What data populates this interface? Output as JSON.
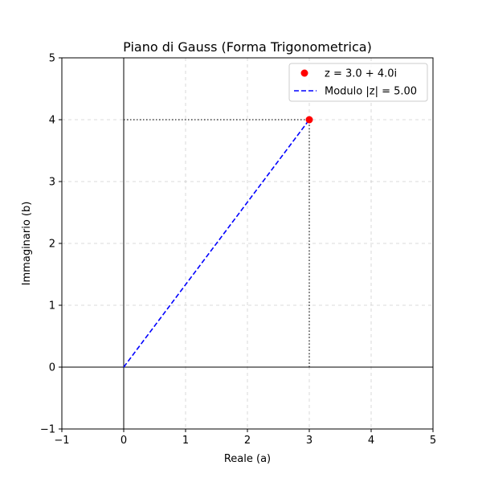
{
  "chart_data": {
    "type": "scatter",
    "title": "Piano di Gauss (Forma Trigonometrica)",
    "xlabel": "Reale (a)",
    "ylabel": "Immaginario (b)",
    "xlim": [
      -1,
      5
    ],
    "ylim": [
      -1,
      5
    ],
    "xticks": [
      -1,
      0,
      1,
      2,
      3,
      4,
      5
    ],
    "yticks": [
      -1,
      0,
      1,
      2,
      3,
      4,
      5
    ],
    "xtick_labels": [
      "−1",
      "0",
      "1",
      "2",
      "3",
      "4",
      "5"
    ],
    "ytick_labels": [
      "−1",
      "0",
      "1",
      "2",
      "3",
      "4",
      "5"
    ],
    "grid": true,
    "legend_position": "top-right",
    "series": [
      {
        "name": "z = 3.0 + 4.0i",
        "kind": "point",
        "x": [
          3.0
        ],
        "y": [
          4.0
        ],
        "color": "#ff0000"
      },
      {
        "name": "Modulo |z| = 5.00",
        "kind": "dashed-line",
        "x": [
          0,
          3.0
        ],
        "y": [
          0,
          4.0
        ],
        "color": "#0000ff"
      }
    ],
    "projection_lines": {
      "color": "#000000",
      "style": "dotted",
      "horizontal": {
        "x": [
          0,
          3.0
        ],
        "y": [
          4.0,
          4.0
        ]
      },
      "vertical": {
        "x": [
          3.0,
          3.0
        ],
        "y": [
          0,
          4.0
        ]
      }
    },
    "reference_axes": {
      "color": "#000000",
      "x_axis_at_y": 0,
      "y_axis_at_x": 0
    }
  }
}
